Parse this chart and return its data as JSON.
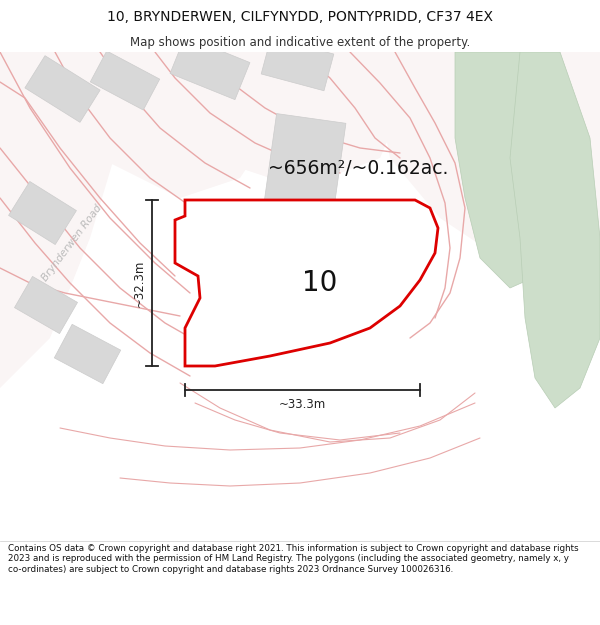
{
  "title_line1": "10, BRYNDERWEN, CILFYNYDD, PONTYPRIDD, CF37 4EX",
  "title_line2": "Map shows position and indicative extent of the property.",
  "footer_text": "Contains OS data © Crown copyright and database right 2021. This information is subject to Crown copyright and database rights 2023 and is reproduced with the permission of HM Land Registry. The polygons (including the associated geometry, namely x, y co-ordinates) are subject to Crown copyright and database rights 2023 Ordnance Survey 100026316.",
  "area_label": "~656m²/~0.162ac.",
  "width_label": "~33.3m",
  "height_label": "~32.3m",
  "plot_number": "10",
  "road_label": "Brynderwen Road",
  "bg_color": "#ffffff",
  "map_bg": "#ffffff",
  "plot_fill": "#ffffff",
  "plot_edge": "#dd0000",
  "green_fill": "#cddeca",
  "green_edge": "#b8cdb5",
  "pink_line": "#e8a8a8",
  "pink_fill": "#f5e8e8",
  "gray_fill": "#d8d8d8",
  "gray_edge": "#cccccc",
  "dim_color": "#222222",
  "road_label_color": "#bbbbbb"
}
